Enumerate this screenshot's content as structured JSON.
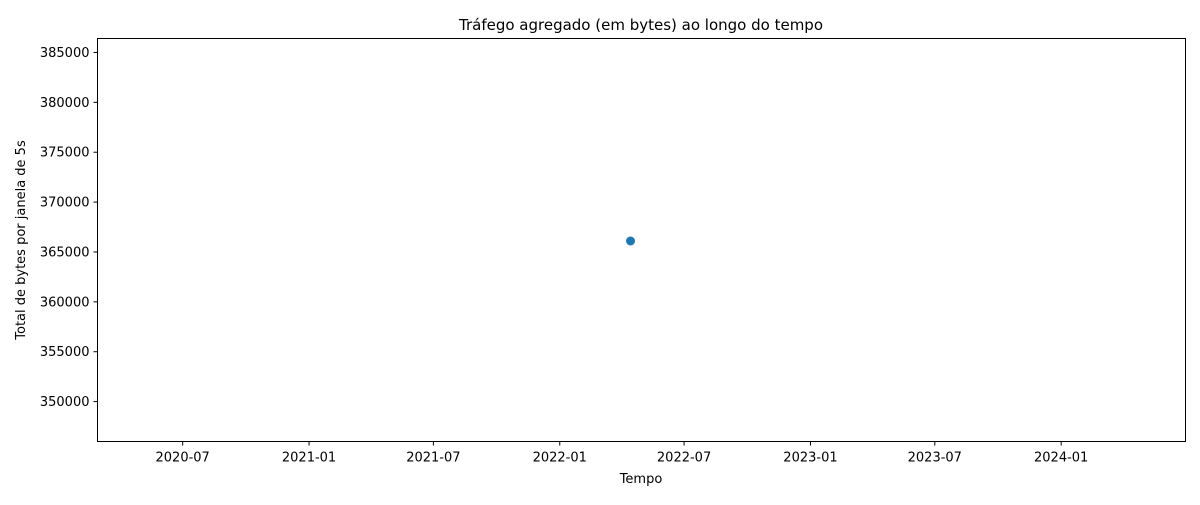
{
  "chart_data": {
    "type": "scatter",
    "title": "Tráfego agregado (em bytes) ao longo do tempo",
    "xlabel": "Tempo",
    "ylabel": "Total de bytes por janela de 5s",
    "x_ticks": [
      "2020-07",
      "2021-01",
      "2021-07",
      "2022-01",
      "2022-07",
      "2023-01",
      "2023-07",
      "2024-01"
    ],
    "y_ticks": [
      350000,
      355000,
      360000,
      365000,
      370000,
      375000,
      380000,
      385000
    ],
    "xlim": [
      "2020-02-28",
      "2024-06-30"
    ],
    "ylim": [
      346000,
      386400
    ],
    "grid": false,
    "points": [
      {
        "x": "2022-04-14",
        "y": 366100
      }
    ],
    "colors": {
      "marker": "#1f77b4"
    }
  }
}
